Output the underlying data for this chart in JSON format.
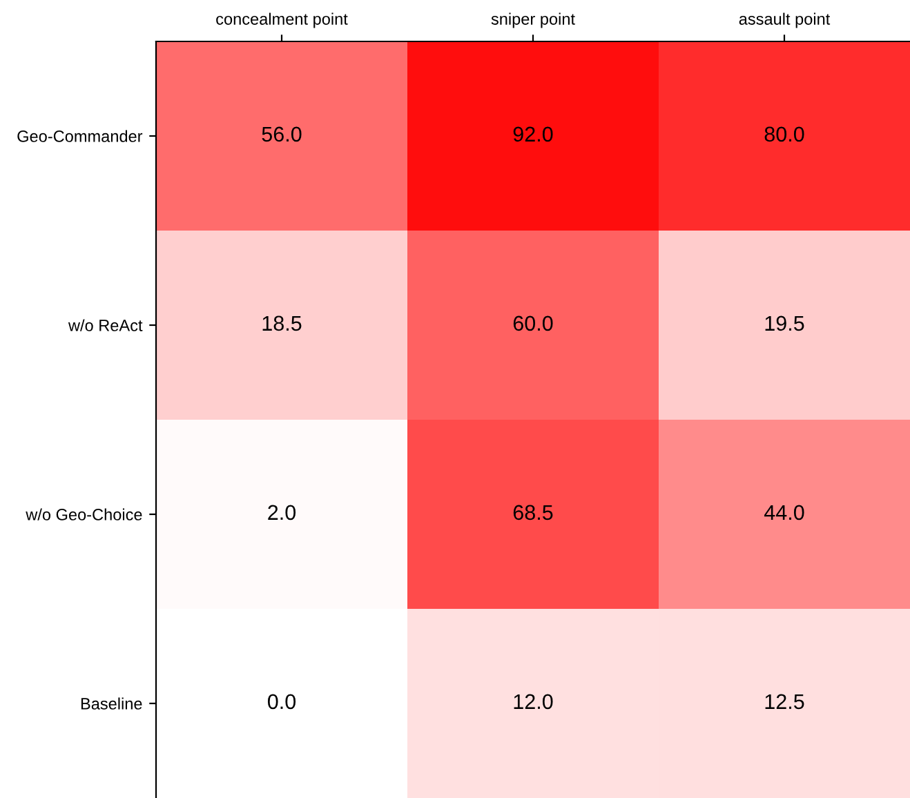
{
  "chart_data": {
    "type": "heatmap",
    "categories": [
      "concealment point",
      "sniper point",
      "assault point"
    ],
    "y_categories": [
      "Geo-Commander",
      "w/o ReAct",
      "w/o Geo-Choice",
      "Baseline"
    ],
    "cells": [
      [
        56.0,
        92.0,
        80.0
      ],
      [
        18.5,
        60.0,
        19.5
      ],
      [
        2.0,
        68.5,
        44.0
      ],
      [
        0.0,
        12.0,
        12.5
      ]
    ],
    "cell_labels": [
      [
        "56.0",
        "92.0",
        "80.0"
      ],
      [
        "18.5",
        "60.0",
        "19.5"
      ],
      [
        "2.0",
        "68.5",
        "44.0"
      ],
      [
        "0.0",
        "12.0",
        "12.5"
      ]
    ],
    "color": "#ff0000"
  }
}
